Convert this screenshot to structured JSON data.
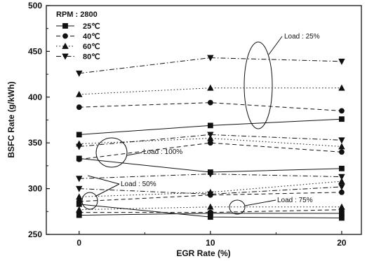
{
  "chart_data": {
    "type": "line",
    "xlabel": "EGR Rate (%)",
    "ylabel": "BSFC Rate (g/kWh)",
    "x": [
      0,
      10,
      20
    ],
    "xticks": [
      "0",
      "10",
      "20"
    ],
    "xlim": [
      -2.5,
      21.5
    ],
    "ylim": [
      250,
      500
    ],
    "yticks": [
      "250",
      "300",
      "350",
      "400",
      "450",
      "500"
    ],
    "legend": {
      "title": "RPM : 2800",
      "placement": "top-left",
      "entries": [
        {
          "label": "25℃",
          "marker": "square",
          "dash": "solid"
        },
        {
          "label": "40℃",
          "marker": "circle",
          "dash": "dashed"
        },
        {
          "label": "60℃",
          "marker": "triangle-up",
          "dash": "dotted"
        },
        {
          "label": "80℃",
          "marker": "triangle-down",
          "dash": "dashdot"
        }
      ]
    },
    "series": [
      {
        "temp": "25℃",
        "load": "25%",
        "marker": "square",
        "dash": "solid",
        "values": [
          359,
          369,
          376
        ]
      },
      {
        "temp": "40℃",
        "load": "25%",
        "marker": "circle",
        "dash": "dashed",
        "values": [
          389,
          394,
          385
        ]
      },
      {
        "temp": "60℃",
        "load": "25%",
        "marker": "triangle-up",
        "dash": "dotted",
        "values": [
          403,
          410,
          410
        ]
      },
      {
        "temp": "80℃",
        "load": "25%",
        "marker": "triangle-down",
        "dash": "dashdot",
        "values": [
          426,
          443,
          439
        ]
      },
      {
        "temp": "25℃",
        "load": "50%",
        "marker": "square",
        "dash": "solid",
        "values": [
          333,
          318,
          322
        ]
      },
      {
        "temp": "40℃",
        "load": "50%",
        "marker": "circle",
        "dash": "dashed",
        "values": [
          332,
          350,
          340
        ]
      },
      {
        "temp": "60℃",
        "load": "50%",
        "marker": "triangle-up",
        "dash": "dotted",
        "values": [
          349,
          355,
          346
        ]
      },
      {
        "temp": "80℃",
        "load": "50%",
        "marker": "triangle-down",
        "dash": "dashdot",
        "values": [
          346,
          359,
          353
        ]
      },
      {
        "temp": "25℃",
        "load": "100%",
        "marker": "square",
        "dash": "solid",
        "values": [
          283,
          269,
          268
        ]
      },
      {
        "temp": "40℃",
        "load": "100%",
        "marker": "circle",
        "dash": "dashed",
        "values": [
          286,
          293,
          296
        ]
      },
      {
        "temp": "60℃",
        "load": "100%",
        "marker": "triangle-up",
        "dash": "dotted",
        "values": [
          291,
          296,
          308
        ]
      },
      {
        "temp": "80℃",
        "load": "100%",
        "marker": "triangle-down",
        "dash": "dashdot",
        "values": [
          311,
          316,
          313
        ]
      },
      {
        "temp": "25℃",
        "load": "75%",
        "marker": "square",
        "dash": "solid",
        "values": [
          271,
          273,
          273
        ]
      },
      {
        "temp": "40℃",
        "load": "75%",
        "marker": "circle",
        "dash": "dashed",
        "values": [
          274,
          274,
          277
        ]
      },
      {
        "temp": "60℃",
        "load": "75%",
        "marker": "triangle-up",
        "dash": "dotted",
        "values": [
          277,
          280,
          280
        ]
      },
      {
        "temp": "80℃",
        "load": "75%",
        "marker": "triangle-down",
        "dash": "dashdot",
        "values": [
          300,
          294,
          302
        ]
      }
    ],
    "annotations": [
      {
        "text": "Load : 25%"
      },
      {
        "text": "Load : 100%"
      },
      {
        "text": "Load : 50%"
      },
      {
        "text": "Load : 75%"
      }
    ]
  }
}
